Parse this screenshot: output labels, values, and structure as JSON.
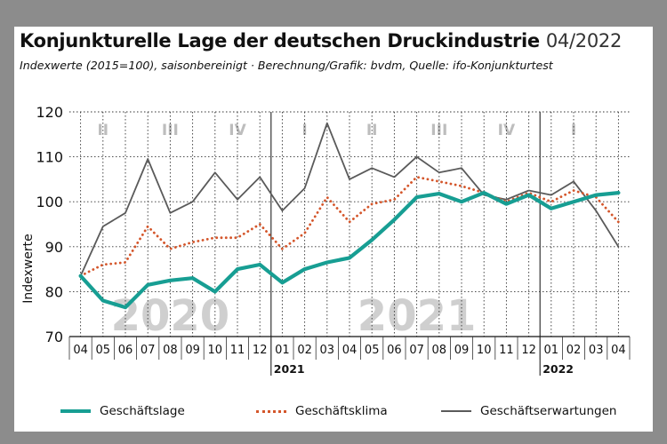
{
  "title": "Konjunkturelle Lage der deutschen Druckindustrie",
  "title_date": "04/2022",
  "subtitle": "Indexwerte (2015=100), saisonbereinigt · Berechnung/Grafik: bvdm, Quelle: ifo-Konjunkturtest",
  "chart_data": {
    "type": "line",
    "ylabel": "Indexwerte",
    "ylim": [
      70,
      120
    ],
    "yticks": [
      70,
      80,
      90,
      100,
      110,
      120
    ],
    "x": [
      "04",
      "05",
      "06",
      "07",
      "08",
      "09",
      "10",
      "11",
      "12",
      "01",
      "02",
      "03",
      "04",
      "05",
      "06",
      "07",
      "08",
      "09",
      "10",
      "11",
      "12",
      "01",
      "02",
      "03",
      "04"
    ],
    "year_labels": [
      {
        "label": "2021",
        "start_index": 9
      },
      {
        "label": "2022",
        "start_index": 21
      }
    ],
    "watermarks": [
      {
        "label": "2020",
        "center_index": 4
      },
      {
        "label": "2021",
        "center_index": 15
      }
    ],
    "quarters": [
      {
        "label": "II",
        "start": 0,
        "end": 2
      },
      {
        "label": "III",
        "start": 3,
        "end": 5
      },
      {
        "label": "IV",
        "start": 6,
        "end": 8
      },
      {
        "label": "I",
        "start": 9,
        "end": 11
      },
      {
        "label": "II",
        "start": 12,
        "end": 14
      },
      {
        "label": "III",
        "start": 15,
        "end": 17
      },
      {
        "label": "IV",
        "start": 18,
        "end": 20
      },
      {
        "label": "I",
        "start": 21,
        "end": 23
      }
    ],
    "grid": true,
    "legend_position": "bottom",
    "series": [
      {
        "name": "Geschäftslage",
        "style": "thick",
        "color": "#179e93",
        "values": [
          83.5,
          78,
          76.5,
          81.5,
          82.5,
          83,
          80,
          85,
          86,
          82,
          85,
          86.5,
          87.5,
          91.5,
          96,
          101,
          101.8,
          100,
          102,
          99.5,
          101.5,
          98.5,
          100,
          101.5,
          102
        ]
      },
      {
        "name": "Geschäftsklima",
        "style": "dotted",
        "color": "#d4562b",
        "values": [
          83.5,
          86,
          86.5,
          94.5,
          89.5,
          91,
          92,
          92,
          95,
          89.5,
          93,
          101,
          95.5,
          99.5,
          100.5,
          105.5,
          104.5,
          103.5,
          102,
          100,
          102,
          100,
          102.5,
          101,
          95.5
        ]
      },
      {
        "name": "Geschäftserwartungen",
        "style": "thin",
        "color": "#5a5a5a",
        "values": [
          83.5,
          94.5,
          97.5,
          109.5,
          97.5,
          100,
          106.5,
          100.5,
          105.5,
          98,
          103,
          117.5,
          105,
          107.5,
          105.5,
          110,
          106.5,
          107.5,
          101.5,
          100.5,
          102.5,
          101.5,
          104.5,
          98,
          90
        ]
      }
    ]
  }
}
